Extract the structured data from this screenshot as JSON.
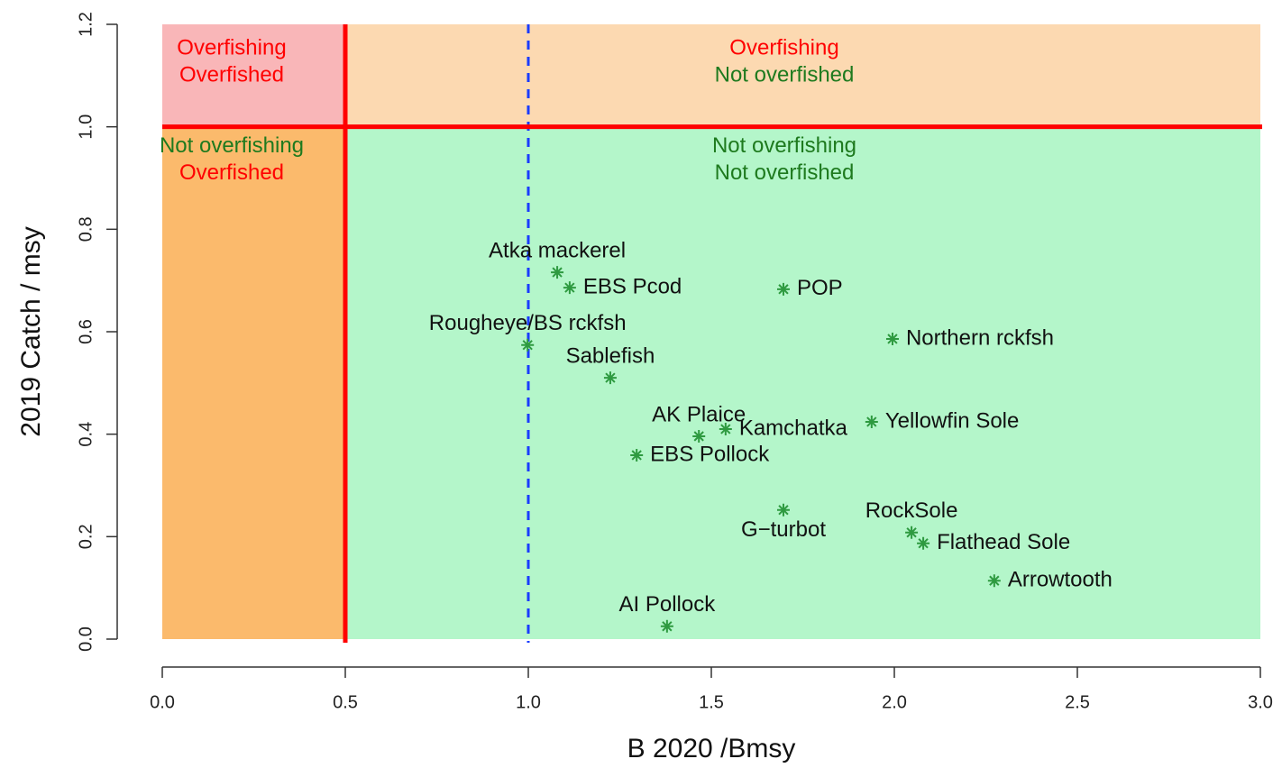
{
  "chart_data": {
    "type": "scatter",
    "x_label": "B 2020 /Bmsy",
    "y_label": "2019 Catch / msy",
    "xlim": [
      0,
      3
    ],
    "xticks": [
      {
        "value": 0,
        "label": "0.0"
      },
      0.5,
      {
        "value": 1,
        "label": "1.0"
      },
      1.5,
      {
        "value": 2,
        "label": "2.0"
      },
      2.5,
      {
        "value": 3,
        "label": "3.0"
      }
    ],
    "ylim": [
      0,
      1.2
    ],
    "yticks": [
      {
        "value": 0,
        "label": "0.0"
      },
      0.2,
      0.4,
      0.6,
      0.8,
      {
        "value": 1,
        "label": "1.0"
      },
      1.2
    ],
    "grid": false,
    "color": "#2e9a40",
    "points": [
      "Atka mackerel",
      "EBS Pcod",
      "POP",
      "Rougheye/BS rckfsh",
      "Sablefish",
      "Northern rckfsh",
      "AK Plaice",
      "Kamchatka",
      "Yellowfin Sole",
      "EBS Pollock",
      "G−turbot",
      "RockSole",
      "Flathead Sole",
      "Arrowtooth",
      "AI Pollock"
    ],
    "x": [
      1.079,
      1.113,
      1.697,
      0.998,
      1.224,
      1.995,
      1.466,
      1.539,
      1.938,
      1.296,
      1.697,
      2.047,
      2.079,
      2.273,
      1.379
    ],
    "values": [
      0.716,
      0.686,
      0.683,
      0.574,
      0.51,
      0.586,
      0.396,
      0.41,
      0.424,
      0.359,
      0.252,
      0.208,
      0.187,
      0.114,
      0.025
    ],
    "vlines": [
      {
        "value": 0.5,
        "color": "#ff0000",
        "dashed": false
      },
      {
        "value": 1,
        "color": "#1a3cff",
        "dashed": true
      }
    ],
    "hlines": [
      {
        "value": 1,
        "color": "#ff0000",
        "dashed": false
      }
    ],
    "quadrants": [
      {
        "fill": "#f9b6b8",
        "lines": [
          {
            "text": "Overfishing",
            "color": "#ff0000"
          },
          {
            "text": "Overfished",
            "color": "#ff0000"
          }
        ]
      },
      {
        "fill": "#fcd9b1",
        "lines": [
          {
            "text": "Overfishing",
            "color": "#ff0000"
          },
          {
            "text": "Not overfished",
            "color": "#1e7a1e"
          }
        ]
      },
      {
        "fill": "#fbba6c",
        "lines": [
          {
            "text": "Not overfishing",
            "color": "#1e7a1e"
          },
          {
            "text": "Overfished",
            "color": "#ff0000"
          }
        ]
      },
      {
        "fill": "#b4f6ca",
        "lines": [
          {
            "text": "Not overfishing",
            "color": "#1e7a1e"
          },
          {
            "text": "Not overfished",
            "color": "#1e7a1e"
          }
        ]
      }
    ]
  }
}
